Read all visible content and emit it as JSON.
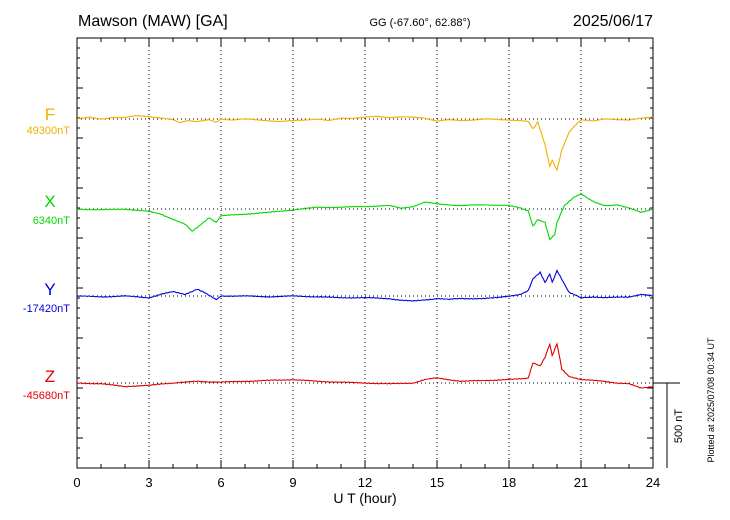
{
  "header": {
    "station": "Mawson (MAW)  [GA]",
    "coords": "GG (-67.60°,  62.88°)",
    "date": "2025/06/17"
  },
  "footer": {
    "plotted": "Plotted at 2025/07/08 00:34 UT"
  },
  "chart_data": {
    "type": "line",
    "title": "Mawson (MAW)  [GA]",
    "xlabel": "U T (hour)",
    "xlim": [
      0,
      24
    ],
    "xticks": [
      "0",
      "3",
      "6",
      "9",
      "12",
      "15",
      "18",
      "21",
      "24"
    ],
    "grid": true,
    "scale_bar": {
      "label": "500 nT",
      "value": 500
    },
    "series": [
      {
        "name": "F",
        "baseline_label": "49300nT",
        "baseline": 49300,
        "color": "#f0b000",
        "points": [
          [
            0,
            0
          ],
          [
            0.5,
            10
          ],
          [
            1,
            0
          ],
          [
            1.5,
            10
          ],
          [
            2,
            8
          ],
          [
            2.5,
            20
          ],
          [
            3,
            15
          ],
          [
            3.5,
            5
          ],
          [
            4,
            -5
          ],
          [
            4.3,
            -20
          ],
          [
            4.6,
            -10
          ],
          [
            5,
            -15
          ],
          [
            5.5,
            -5
          ],
          [
            5.8,
            -18
          ],
          [
            6,
            0
          ],
          [
            6.5,
            -5
          ],
          [
            7,
            0
          ],
          [
            7.5,
            -5
          ],
          [
            8,
            -10
          ],
          [
            8.5,
            -15
          ],
          [
            9,
            -10
          ],
          [
            9.5,
            -5
          ],
          [
            10,
            0
          ],
          [
            10.5,
            -10
          ],
          [
            11,
            5
          ],
          [
            11.5,
            5
          ],
          [
            12,
            10
          ],
          [
            12.5,
            15
          ],
          [
            13,
            10
          ],
          [
            13.5,
            12
          ],
          [
            14,
            10
          ],
          [
            14.5,
            5
          ],
          [
            15,
            -12
          ],
          [
            15.5,
            -5
          ],
          [
            16,
            -10
          ],
          [
            16.5,
            -5
          ],
          [
            17,
            0
          ],
          [
            17.5,
            -3
          ],
          [
            18,
            -5
          ],
          [
            18.5,
            -10
          ],
          [
            18.8,
            -15
          ],
          [
            19,
            -60
          ],
          [
            19.2,
            -20
          ],
          [
            19.5,
            -150
          ],
          [
            19.7,
            -280
          ],
          [
            19.8,
            -240
          ],
          [
            20,
            -300
          ],
          [
            20.2,
            -180
          ],
          [
            20.5,
            -80
          ],
          [
            20.8,
            -30
          ],
          [
            21,
            -5
          ],
          [
            21.5,
            -10
          ],
          [
            22,
            0
          ],
          [
            22.5,
            -5
          ],
          [
            23,
            -5
          ],
          [
            23.5,
            5
          ],
          [
            24,
            10
          ]
        ]
      },
      {
        "name": "X",
        "baseline_label": "6340nT",
        "baseline": 6340,
        "color": "#00d800",
        "points": [
          [
            0,
            0
          ],
          [
            1,
            -5
          ],
          [
            2,
            0
          ],
          [
            3,
            -15
          ],
          [
            3.5,
            -30
          ],
          [
            4,
            -60
          ],
          [
            4.5,
            -90
          ],
          [
            4.8,
            -130
          ],
          [
            5,
            -110
          ],
          [
            5.5,
            -50
          ],
          [
            5.8,
            -80
          ],
          [
            6,
            -40
          ],
          [
            7,
            -30
          ],
          [
            8,
            -20
          ],
          [
            9,
            -5
          ],
          [
            10,
            10
          ],
          [
            11,
            10
          ],
          [
            12,
            15
          ],
          [
            13,
            20
          ],
          [
            13.5,
            5
          ],
          [
            14,
            15
          ],
          [
            14.5,
            40
          ],
          [
            15,
            30
          ],
          [
            16,
            20
          ],
          [
            17,
            25
          ],
          [
            18,
            20
          ],
          [
            18.5,
            5
          ],
          [
            18.8,
            -10
          ],
          [
            19,
            -100
          ],
          [
            19.2,
            -60
          ],
          [
            19.5,
            -80
          ],
          [
            19.7,
            -180
          ],
          [
            19.9,
            -150
          ],
          [
            20,
            -80
          ],
          [
            20.3,
            20
          ],
          [
            20.7,
            70
          ],
          [
            21,
            90
          ],
          [
            21.3,
            60
          ],
          [
            21.6,
            40
          ],
          [
            22,
            20
          ],
          [
            22.5,
            25
          ],
          [
            23,
            5
          ],
          [
            23.5,
            -20
          ],
          [
            24,
            0
          ]
        ]
      },
      {
        "name": "Y",
        "baseline_label": "-17420nT",
        "baseline": -17420,
        "color": "#0000e0",
        "points": [
          [
            0,
            0
          ],
          [
            1,
            -5
          ],
          [
            2,
            0
          ],
          [
            3,
            -10
          ],
          [
            3.5,
            10
          ],
          [
            4,
            25
          ],
          [
            4.5,
            10
          ],
          [
            5,
            40
          ],
          [
            5.3,
            20
          ],
          [
            5.8,
            -20
          ],
          [
            6,
            0
          ],
          [
            7,
            0
          ],
          [
            8,
            -5
          ],
          [
            9,
            0
          ],
          [
            10,
            -5
          ],
          [
            11,
            -10
          ],
          [
            12,
            -10
          ],
          [
            13,
            -15
          ],
          [
            13.5,
            -25
          ],
          [
            14,
            -30
          ],
          [
            15,
            -15
          ],
          [
            15.5,
            -20
          ],
          [
            16,
            -15
          ],
          [
            17,
            -15
          ],
          [
            17.5,
            -10
          ],
          [
            18,
            0
          ],
          [
            18.5,
            10
          ],
          [
            18.8,
            30
          ],
          [
            19,
            100
          ],
          [
            19.3,
            140
          ],
          [
            19.5,
            80
          ],
          [
            19.7,
            130
          ],
          [
            19.8,
            80
          ],
          [
            20,
            150
          ],
          [
            20.2,
            100
          ],
          [
            20.5,
            20
          ],
          [
            21,
            -10
          ],
          [
            21.5,
            -5
          ],
          [
            22,
            -10
          ],
          [
            23,
            -5
          ],
          [
            23.5,
            10
          ],
          [
            24,
            0
          ]
        ]
      },
      {
        "name": "Z",
        "baseline_label": "-45680nT",
        "baseline": -45680,
        "color": "#e00000",
        "points": [
          [
            0,
            0
          ],
          [
            1,
            -5
          ],
          [
            2,
            -20
          ],
          [
            3,
            -15
          ],
          [
            3.5,
            -5
          ],
          [
            4,
            0
          ],
          [
            5,
            10
          ],
          [
            6,
            5
          ],
          [
            7,
            10
          ],
          [
            8,
            15
          ],
          [
            9,
            20
          ],
          [
            10,
            10
          ],
          [
            11,
            5
          ],
          [
            12,
            0
          ],
          [
            13,
            -5
          ],
          [
            14,
            0
          ],
          [
            14.5,
            20
          ],
          [
            15,
            30
          ],
          [
            15.5,
            20
          ],
          [
            16,
            10
          ],
          [
            17,
            15
          ],
          [
            18,
            20
          ],
          [
            18.5,
            25
          ],
          [
            18.8,
            30
          ],
          [
            19,
            120
          ],
          [
            19.3,
            100
          ],
          [
            19.5,
            150
          ],
          [
            19.7,
            230
          ],
          [
            19.8,
            160
          ],
          [
            20,
            230
          ],
          [
            20.2,
            80
          ],
          [
            20.5,
            40
          ],
          [
            21,
            20
          ],
          [
            21.5,
            15
          ],
          [
            22,
            10
          ],
          [
            22.5,
            0
          ],
          [
            23,
            -5
          ],
          [
            23.5,
            -30
          ],
          [
            24,
            -20
          ]
        ]
      }
    ]
  }
}
